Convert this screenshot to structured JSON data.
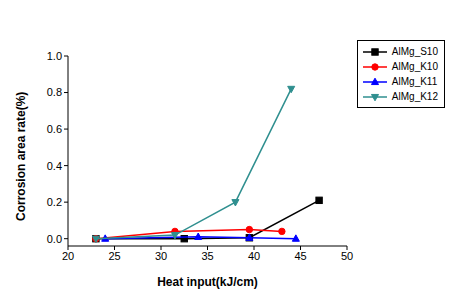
{
  "chart_data": {
    "type": "line",
    "x_label": "Heat input(kJ/cm)",
    "y_label": "Corrosion area rate(%)",
    "xlim": [
      20,
      50
    ],
    "xticks": [
      20,
      25,
      30,
      35,
      40,
      45,
      50
    ],
    "ylim": [
      -0.04,
      1.0
    ],
    "yticks": [
      {
        "value": 0,
        "label": "0.0"
      },
      {
        "value": 0.2,
        "label": "0.2"
      },
      {
        "value": 0.4,
        "label": "0.4"
      },
      {
        "value": 0.6,
        "label": "0.6"
      },
      {
        "value": 0.8,
        "label": "0.8"
      },
      {
        "value": 1.0,
        "label": "1.0"
      }
    ],
    "grid": false,
    "legend": "upper right",
    "series": [
      {
        "name": "AlMg_S10",
        "color": "#000000",
        "marker": "square",
        "line_style": "solid",
        "x": [
          23,
          32.5,
          39.5,
          47
        ],
        "values": [
          0,
          0,
          0.005,
          0.21
        ]
      },
      {
        "name": "AlMg_K10",
        "color": "#ff0000",
        "marker": "circle",
        "line_style": "solid",
        "x": [
          23,
          31.5,
          39.5,
          43
        ],
        "values": [
          0,
          0.04,
          0.05,
          0.04
        ]
      },
      {
        "name": "AlMg_K11",
        "color": "#0000ff",
        "marker": "triangle",
        "line_style": "solid",
        "x": [
          24,
          34,
          39.5,
          44.5
        ],
        "values": [
          0,
          0.01,
          0.005,
          0
        ]
      },
      {
        "name": "AlMg_K12",
        "color": "#2f8f8f",
        "marker": "triangle_down",
        "line_style": "solid",
        "x": [
          23,
          31.5,
          38,
          44
        ],
        "values": [
          0,
          0.02,
          0.2,
          0.82
        ]
      }
    ]
  }
}
